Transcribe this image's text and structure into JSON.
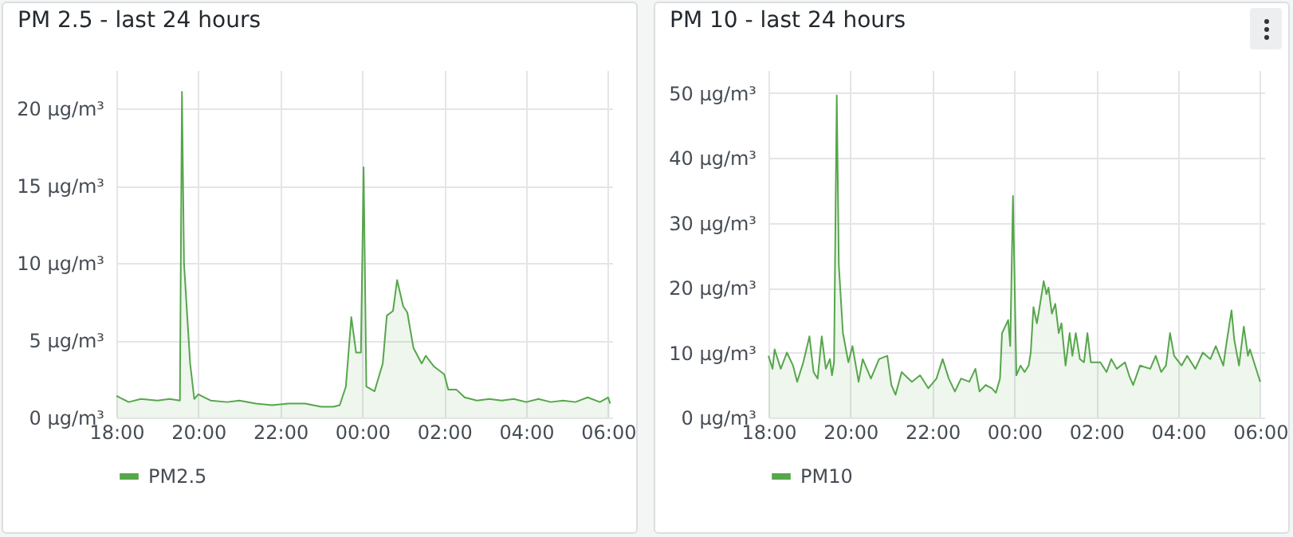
{
  "chart_data": [
    {
      "type": "area",
      "title": "PM 2.5 - last 24 hours",
      "grid": true,
      "legend": "bottom",
      "xlim": [
        "2000-01-01T18:00",
        "2000-01-02T06:06"
      ],
      "ylim": [
        0,
        22.5
      ],
      "xticks": [
        {
          "value": "2000-01-01T18:00",
          "label": "18:00"
        },
        {
          "value": "2000-01-01T20:00",
          "label": "20:00"
        },
        {
          "value": "2000-01-01T22:00",
          "label": "22:00"
        },
        {
          "value": "2000-01-02T00:00",
          "label": "00:00"
        },
        {
          "value": "2000-01-02T02:00",
          "label": "02:00"
        },
        {
          "value": "2000-01-02T04:00",
          "label": "04:00"
        },
        {
          "value": "2000-01-02T06:00",
          "label": "06:00"
        }
      ],
      "yticks": [
        {
          "value": 0,
          "label": "0 µg/m³"
        },
        {
          "value": 5,
          "label": "5 µg/m³"
        },
        {
          "value": 10,
          "label": "10 µg/m³"
        },
        {
          "value": 15,
          "label": "15 µg/m³"
        },
        {
          "value": 20,
          "label": "20 µg/m³"
        }
      ],
      "x": [
        "2000-01-01T18:00",
        "2000-01-01T18:18",
        "2000-01-01T18:36",
        "2000-01-01T19:00",
        "2000-01-01T19:18",
        "2000-01-01T19:33",
        "2000-01-01T19:36",
        "2000-01-01T19:39",
        "2000-01-01T19:48",
        "2000-01-01T19:54",
        "2000-01-01T20:00",
        "2000-01-01T20:18",
        "2000-01-01T20:42",
        "2000-01-01T21:00",
        "2000-01-01T21:24",
        "2000-01-01T21:48",
        "2000-01-01T22:12",
        "2000-01-01T22:36",
        "2000-01-01T23:00",
        "2000-01-01T23:18",
        "2000-01-01T23:27",
        "2000-01-01T23:36",
        "2000-01-01T23:44",
        "2000-01-01T23:51",
        "2000-01-01T23:58",
        "2000-01-02T00:02",
        "2000-01-02T00:06",
        "2000-01-02T00:18",
        "2000-01-02T00:30",
        "2000-01-02T00:36",
        "2000-01-02T00:45",
        "2000-01-02T00:51",
        "2000-01-02T01:00",
        "2000-01-02T01:06",
        "2000-01-02T01:15",
        "2000-01-02T01:27",
        "2000-01-02T01:33",
        "2000-01-02T01:45",
        "2000-01-02T02:00",
        "2000-01-02T02:06",
        "2000-01-02T02:18",
        "2000-01-02T02:30",
        "2000-01-02T02:48",
        "2000-01-02T03:06",
        "2000-01-02T03:24",
        "2000-01-02T03:42",
        "2000-01-02T04:00",
        "2000-01-02T04:18",
        "2000-01-02T04:36",
        "2000-01-02T04:54",
        "2000-01-02T05:12",
        "2000-01-02T05:30",
        "2000-01-02T05:48",
        "2000-01-02T06:00",
        "2000-01-02T06:03"
      ],
      "series": [
        {
          "name": "PM2.5",
          "color": "#56a64b",
          "values": [
            1.4,
            1.0,
            1.2,
            1.1,
            1.2,
            1.1,
            21.1,
            10,
            3.5,
            1.2,
            1.5,
            1.1,
            1.0,
            1.1,
            0.9,
            0.8,
            0.9,
            0.9,
            0.7,
            0.7,
            0.8,
            2.0,
            6.5,
            4.2,
            4.2,
            16.2,
            2.0,
            1.7,
            3.5,
            6.6,
            6.9,
            8.9,
            7.2,
            6.8,
            4.5,
            3.5,
            4.0,
            3.3,
            2.8,
            1.8,
            1.8,
            1.3,
            1.1,
            1.2,
            1.1,
            1.2,
            1.0,
            1.2,
            1.0,
            1.1,
            1.0,
            1.3,
            1.0,
            1.3,
            0.9
          ]
        }
      ]
    },
    {
      "type": "area",
      "title": "PM 10 - last 24 hours",
      "grid": true,
      "legend": "bottom",
      "xlim": [
        "2000-01-01T18:00",
        "2000-01-02T06:06"
      ],
      "ylim": [
        0,
        53.5
      ],
      "xticks": [
        {
          "value": "2000-01-01T18:00",
          "label": "18:00"
        },
        {
          "value": "2000-01-01T20:00",
          "label": "20:00"
        },
        {
          "value": "2000-01-01T22:00",
          "label": "22:00"
        },
        {
          "value": "2000-01-02T00:00",
          "label": "00:00"
        },
        {
          "value": "2000-01-02T02:00",
          "label": "02:00"
        },
        {
          "value": "2000-01-02T04:00",
          "label": "04:00"
        },
        {
          "value": "2000-01-02T06:00",
          "label": "06:00"
        }
      ],
      "yticks": [
        {
          "value": 0,
          "label": "0 µg/m³"
        },
        {
          "value": 10,
          "label": "10 µg/m³"
        },
        {
          "value": 20,
          "label": "20 µg/m³"
        },
        {
          "value": 30,
          "label": "30 µg/m³"
        },
        {
          "value": 40,
          "label": "40 µg/m³"
        },
        {
          "value": 50,
          "label": "50 µg/m³"
        }
      ],
      "x": [
        "2000-01-01T18:00",
        "2000-01-01T18:06",
        "2000-01-01T18:09",
        "2000-01-01T18:18",
        "2000-01-01T18:27",
        "2000-01-01T18:36",
        "2000-01-01T18:42",
        "2000-01-01T18:51",
        "2000-01-01T19:00",
        "2000-01-01T19:06",
        "2000-01-01T19:12",
        "2000-01-01T19:18",
        "2000-01-01T19:24",
        "2000-01-01T19:30",
        "2000-01-01T19:33",
        "2000-01-01T19:36",
        "2000-01-01T19:40",
        "2000-01-01T19:43",
        "2000-01-01T19:49",
        "2000-01-01T19:57",
        "2000-01-01T20:03",
        "2000-01-01T20:12",
        "2000-01-01T20:18",
        "2000-01-01T20:30",
        "2000-01-01T20:42",
        "2000-01-01T20:54",
        "2000-01-01T21:00",
        "2000-01-01T21:06",
        "2000-01-01T21:15",
        "2000-01-01T21:30",
        "2000-01-01T21:42",
        "2000-01-01T21:54",
        "2000-01-01T22:06",
        "2000-01-01T22:15",
        "2000-01-01T22:24",
        "2000-01-01T22:33",
        "2000-01-01T22:42",
        "2000-01-01T22:54",
        "2000-01-01T23:03",
        "2000-01-01T23:09",
        "2000-01-01T23:18",
        "2000-01-01T23:27",
        "2000-01-01T23:33",
        "2000-01-01T23:39",
        "2000-01-01T23:42",
        "2000-01-01T23:51",
        "2000-01-01T23:54",
        "2000-01-01T23:58",
        "2000-01-02T00:03",
        "2000-01-02T00:09",
        "2000-01-02T00:15",
        "2000-01-02T00:21",
        "2000-01-02T00:24",
        "2000-01-02T00:28",
        "2000-01-02T00:33",
        "2000-01-02T00:37",
        "2000-01-02T00:43",
        "2000-01-02T00:47",
        "2000-01-02T00:50",
        "2000-01-02T00:55",
        "2000-01-02T01:00",
        "2000-01-02T01:05",
        "2000-01-02T01:09",
        "2000-01-02T01:15",
        "2000-01-02T01:21",
        "2000-01-02T01:25",
        "2000-01-02T01:30",
        "2000-01-02T01:36",
        "2000-01-02T01:42",
        "2000-01-02T01:47",
        "2000-01-02T01:52",
        "2000-01-02T02:06",
        "2000-01-02T02:15",
        "2000-01-02T02:22",
        "2000-01-02T02:30",
        "2000-01-02T02:42",
        "2000-01-02T02:48",
        "2000-01-02T02:54",
        "2000-01-02T03:04",
        "2000-01-02T03:19",
        "2000-01-02T03:27",
        "2000-01-02T03:35",
        "2000-01-02T03:42",
        "2000-01-02T03:48",
        "2000-01-02T03:54",
        "2000-01-02T04:05",
        "2000-01-02T04:13",
        "2000-01-02T04:25",
        "2000-01-02T04:36",
        "2000-01-02T04:47",
        "2000-01-02T04:55",
        "2000-01-02T05:06",
        "2000-01-02T05:10",
        "2000-01-02T05:18",
        "2000-01-02T05:22",
        "2000-01-02T05:29",
        "2000-01-02T05:36",
        "2000-01-02T05:42",
        "2000-01-02T05:45",
        "2000-01-02T06:00"
      ],
      "series": [
        {
          "name": "PM10",
          "color": "#56a64b",
          "values": [
            9.5,
            7.5,
            10.5,
            7.5,
            10,
            8,
            5.5,
            8.5,
            12.5,
            7,
            6,
            12.5,
            7.5,
            9,
            6.5,
            8.5,
            49.6,
            23.5,
            13,
            8.5,
            11,
            5.5,
            9,
            6,
            9,
            9.5,
            5,
            3.5,
            7,
            5.5,
            6.5,
            4.5,
            6,
            9,
            6,
            4,
            6,
            5.5,
            7.5,
            4,
            5,
            4.5,
            3.8,
            6,
            13,
            15,
            11,
            34.1,
            6.5,
            8,
            7,
            8,
            10,
            17,
            14.5,
            17,
            21,
            19,
            20,
            16,
            17.5,
            13,
            14.5,
            8,
            13,
            9.5,
            13,
            9,
            8.5,
            13,
            8.5,
            8.5,
            7,
            9,
            7.5,
            8.5,
            6.5,
            5,
            8,
            7.5,
            9.5,
            7,
            8,
            13,
            9.5,
            8,
            9.5,
            7.5,
            10,
            9,
            11,
            8,
            11,
            16.5,
            12,
            8,
            14,
            9.5,
            10.5,
            5.5
          ]
        }
      ]
    }
  ]
}
